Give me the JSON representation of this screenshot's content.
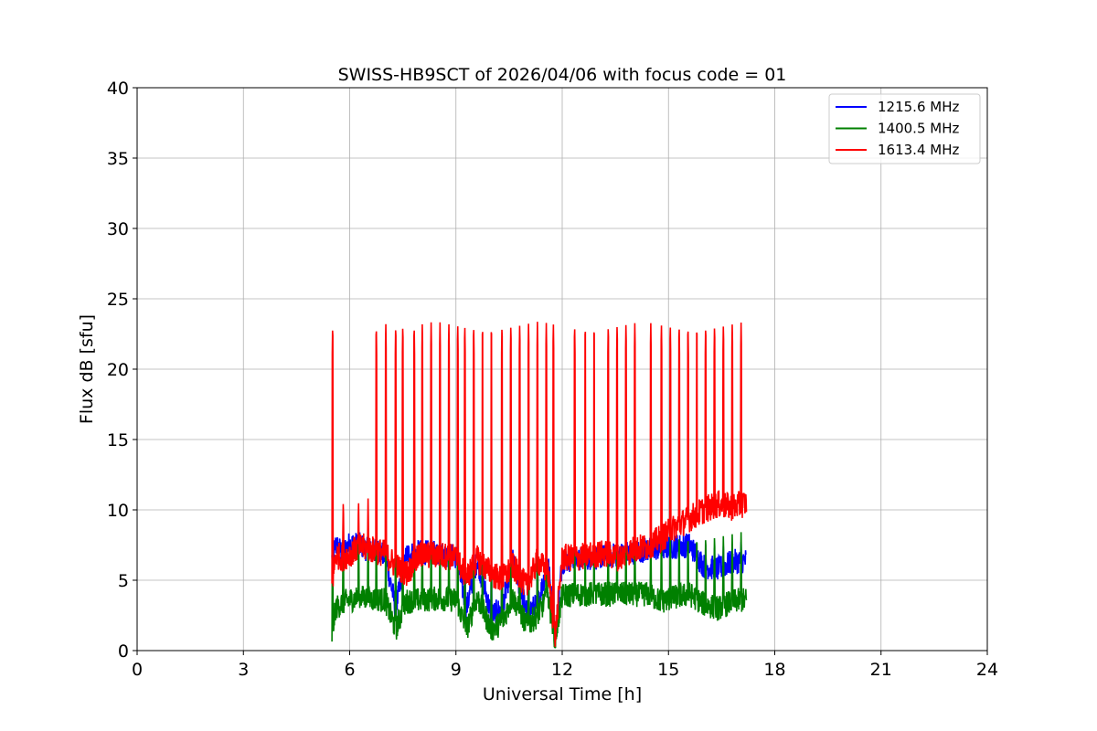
{
  "chart_data": {
    "type": "line",
    "title": "SWISS-HB9SCT of 2026/04/06 with focus code = 01",
    "xlabel": "Universal Time [h]",
    "ylabel": "Flux dB [sfu]",
    "xlim": [
      0,
      24
    ],
    "ylim": [
      0,
      40
    ],
    "xticks": [
      0,
      3,
      6,
      9,
      12,
      15,
      18,
      21,
      24
    ],
    "yticks": [
      0,
      5,
      10,
      15,
      20,
      25,
      30,
      35,
      40
    ],
    "grid": true,
    "legend_position": "top-right",
    "spike_times": [
      5.52,
      5.82,
      6.25,
      6.52,
      6.75,
      7.02,
      7.3,
      7.5,
      7.82,
      8.05,
      8.3,
      8.55,
      8.8,
      9.05,
      9.25,
      9.5,
      9.75,
      10.0,
      10.3,
      10.55,
      10.8,
      11.05,
      11.3,
      11.55,
      11.75,
      12.35,
      12.65,
      12.9,
      13.3,
      13.55,
      13.8,
      14.05,
      14.5,
      14.8,
      15.05,
      15.3,
      15.55,
      15.8,
      16.05,
      16.3,
      16.55,
      16.8,
      17.05
    ],
    "series": [
      {
        "name": "1215.6 MHz",
        "color": "#0000ff",
        "x": [
          5.5,
          5.6,
          5.8,
          6.0,
          6.3,
          6.6,
          6.8,
          7.0,
          7.3,
          7.6,
          8.0,
          8.5,
          9.0,
          9.3,
          9.6,
          10.0,
          10.3,
          10.6,
          11.0,
          11.3,
          11.6,
          11.8,
          12.0,
          12.4,
          12.8,
          13.2,
          13.6,
          14.0,
          14.4,
          14.8,
          15.2,
          15.6,
          16.0,
          16.4,
          16.8,
          17.2
        ],
        "y": [
          6.5,
          7.5,
          7.0,
          7.6,
          7.5,
          7.0,
          7.1,
          6.8,
          3.0,
          6.8,
          7.0,
          6.9,
          6.7,
          3.0,
          6.5,
          2.5,
          3.0,
          6.4,
          2.8,
          3.2,
          6.3,
          1.0,
          6.4,
          6.5,
          6.6,
          6.7,
          6.8,
          7.0,
          7.2,
          7.3,
          7.4,
          7.5,
          6.0,
          5.8,
          6.3,
          6.4
        ]
      },
      {
        "name": "1400.5 MHz",
        "color": "#008000",
        "x": [
          5.5,
          5.6,
          5.8,
          6.0,
          6.3,
          6.6,
          7.0,
          7.3,
          7.6,
          8.0,
          8.5,
          9.0,
          9.3,
          9.6,
          10.0,
          10.3,
          10.6,
          11.0,
          11.3,
          11.6,
          11.8,
          12.0,
          12.4,
          12.8,
          13.2,
          13.6,
          14.0,
          14.4,
          14.8,
          15.2,
          15.6,
          16.0,
          16.4,
          16.8,
          17.2
        ],
        "y": [
          1.0,
          3.0,
          3.4,
          3.6,
          3.8,
          3.7,
          3.6,
          1.5,
          3.5,
          3.6,
          3.7,
          3.6,
          1.5,
          3.8,
          1.5,
          2.0,
          3.8,
          1.8,
          2.5,
          3.9,
          0.8,
          3.9,
          4.0,
          4.0,
          4.0,
          4.0,
          4.0,
          4.0,
          3.5,
          3.8,
          4.0,
          3.3,
          3.0,
          3.5,
          3.6
        ]
      },
      {
        "name": "1613.4 MHz",
        "color": "#ff0000",
        "x": [
          5.5,
          5.6,
          5.8,
          6.0,
          6.3,
          6.6,
          7.0,
          7.3,
          7.6,
          8.0,
          8.5,
          9.0,
          9.3,
          9.6,
          10.0,
          10.3,
          10.6,
          11.0,
          11.3,
          11.6,
          11.8,
          12.0,
          12.4,
          12.8,
          13.2,
          13.6,
          14.0,
          14.4,
          14.8,
          15.2,
          15.6,
          16.0,
          16.4,
          16.8,
          17.2
        ],
        "y": [
          4.5,
          6.8,
          6.6,
          6.9,
          7.4,
          7.2,
          6.9,
          6.0,
          5.5,
          6.8,
          6.8,
          6.6,
          5.2,
          6.5,
          5.5,
          5.0,
          6.0,
          4.5,
          6.4,
          5.5,
          1.0,
          6.6,
          6.6,
          6.8,
          6.9,
          6.6,
          7.2,
          7.4,
          8.0,
          8.8,
          9.4,
          10.0,
          10.4,
          10.2,
          10.5
        ]
      }
    ]
  }
}
